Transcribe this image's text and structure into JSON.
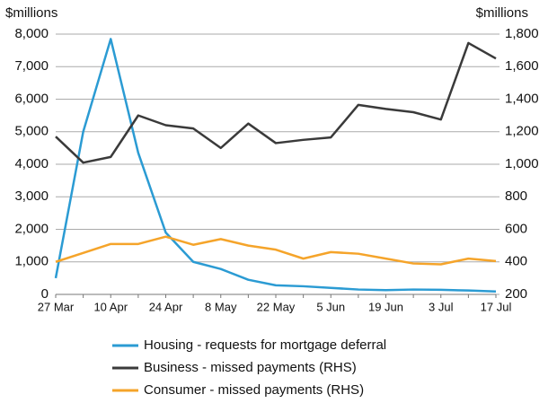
{
  "chart_data": {
    "type": "line",
    "y_label": "$millions",
    "y2_label": "$millions",
    "categories": [
      "27 Mar",
      null,
      "10 Apr",
      null,
      "24 Apr",
      null,
      "8 May",
      null,
      "22 May",
      null,
      "5 Jun",
      null,
      "19 Jun",
      null,
      "3 Jul",
      null,
      "17 Jul"
    ],
    "series": [
      {
        "name": "Housing - requests for mortgage deferral",
        "color": "#2b9bd3",
        "axis": "y",
        "values": [
          500,
          5000,
          7850,
          4350,
          1900,
          1000,
          780,
          450,
          280,
          250,
          200,
          150,
          130,
          150,
          140,
          120,
          90
        ]
      },
      {
        "name": "Business - missed payments (RHS)",
        "color": "#3a3a3a",
        "axis": "y2",
        "values": [
          1170,
          1010,
          1045,
          1300,
          1240,
          1220,
          1100,
          1250,
          1130,
          1150,
          1165,
          1365,
          1340,
          1320,
          1275,
          1745,
          1650
        ]
      },
      {
        "name": "Consumer - missed payments (RHS)",
        "color": "#f5a42a",
        "axis": "y2",
        "values": [
          400,
          455,
          510,
          510,
          555,
          505,
          540,
          500,
          475,
          420,
          460,
          450,
          420,
          390,
          385,
          420,
          405
        ]
      }
    ],
    "ylim": [
      0,
      8000
    ],
    "yticks": [
      0,
      {
        "value": 1000,
        "label": "1,000"
      },
      {
        "value": 2000,
        "label": "2,000"
      },
      {
        "value": 3000,
        "label": "3,000"
      },
      {
        "value": 4000,
        "label": "4,000"
      },
      {
        "value": 5000,
        "label": "5,000"
      },
      {
        "value": 6000,
        "label": "6,000"
      },
      {
        "value": 7000,
        "label": "7,000"
      },
      {
        "value": 8000,
        "label": "8,000"
      }
    ],
    "y2lim": [
      200,
      1800
    ],
    "y2ticks": [
      200,
      400,
      600,
      800,
      {
        "value": 1000,
        "label": "1,000"
      },
      {
        "value": 1200,
        "label": "1,200"
      },
      {
        "value": 1400,
        "label": "1,400"
      },
      {
        "value": 1600,
        "label": "1,600"
      },
      {
        "value": 1800,
        "label": "1,800"
      }
    ],
    "grid": true,
    "legend": "bottom"
  }
}
